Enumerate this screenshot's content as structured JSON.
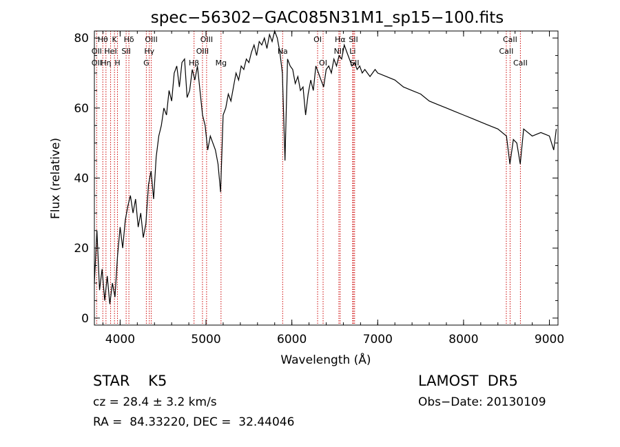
{
  "chart_data": {
    "type": "line",
    "title": "spec−56302−GAC085N31M1_sp15−100.fits",
    "xlabel": "Wavelength (Å)",
    "ylabel": "Flux (relative)",
    "xlim": [
      3700,
      9100
    ],
    "ylim": [
      -2,
      82
    ],
    "x_ticks": [
      4000,
      5000,
      6000,
      7000,
      8000,
      9000
    ],
    "y_ticks": [
      0,
      20,
      40,
      60,
      80
    ],
    "grid": false,
    "series": [
      {
        "x": [
          3700,
          3730,
          3760,
          3790,
          3820,
          3850,
          3880,
          3910,
          3940,
          3970,
          4000,
          4030,
          4060,
          4090,
          4120,
          4150,
          4180,
          4210,
          4240,
          4270,
          4300,
          4330,
          4360,
          4390,
          4420,
          4450,
          4480,
          4510,
          4540,
          4570,
          4600,
          4630,
          4660,
          4690,
          4720,
          4750,
          4780,
          4810,
          4840,
          4870,
          4900,
          4930,
          4960,
          4990,
          5020,
          5050,
          5080,
          5110,
          5140,
          5170,
          5200,
          5230,
          5260,
          5290,
          5320,
          5350,
          5380,
          5410,
          5440,
          5470,
          5500,
          5530,
          5560,
          5590,
          5620,
          5650,
          5680,
          5710,
          5740,
          5770,
          5800,
          5830,
          5860,
          5890,
          5920,
          5950,
          5980,
          6010,
          6040,
          6070,
          6100,
          6130,
          6160,
          6190,
          6220,
          6250,
          6280,
          6310,
          6340,
          6370,
          6400,
          6430,
          6460,
          6490,
          6520,
          6550,
          6580,
          6610,
          6640,
          6670,
          6700,
          6730,
          6760,
          6790,
          6820,
          6850,
          6880,
          6910,
          6940,
          6970,
          7000,
          7100,
          7200,
          7300,
          7400,
          7500,
          7600,
          7700,
          7800,
          7900,
          8000,
          8100,
          8200,
          8300,
          8400,
          8500,
          8540,
          8580,
          8620,
          8660,
          8700,
          8800,
          8900,
          9000,
          9050,
          9080
        ],
        "y": [
          10,
          25,
          8,
          14,
          5,
          12,
          4,
          10,
          6,
          18,
          26,
          20,
          28,
          32,
          35,
          30,
          34,
          26,
          30,
          23,
          27,
          38,
          42,
          34,
          46,
          52,
          55,
          60,
          58,
          65,
          62,
          70,
          72,
          66,
          73,
          74,
          63,
          65,
          71,
          68,
          72,
          65,
          58,
          55,
          48,
          52,
          50,
          48,
          44,
          36,
          58,
          60,
          64,
          62,
          66,
          70,
          68,
          72,
          71,
          74,
          73,
          76,
          78,
          75,
          79,
          78,
          80,
          77,
          81,
          79,
          82,
          80,
          76,
          70,
          45,
          74,
          72,
          71,
          67,
          69,
          65,
          66,
          58,
          64,
          68,
          65,
          72,
          70,
          68,
          66,
          71,
          72,
          70,
          74,
          72,
          75,
          74,
          78,
          76,
          74,
          72,
          73,
          71,
          72,
          70,
          71,
          70,
          69,
          70,
          71,
          70,
          69,
          68,
          66,
          65,
          64,
          62,
          61,
          60,
          59,
          58,
          57,
          56,
          55,
          54,
          52,
          44,
          51,
          50,
          44,
          54,
          52,
          53,
          52,
          48,
          54
        ]
      }
    ],
    "lines": [
      {
        "name": "Hθ",
        "x": 3798,
        "row": 0
      },
      {
        "name": "OII",
        "x": 3727,
        "row": 1
      },
      {
        "name": "OII",
        "x": 3727,
        "row": 2
      },
      {
        "name": "Hη",
        "x": 3835,
        "row": 2
      },
      {
        "name": "K",
        "x": 3934,
        "row": 0
      },
      {
        "name": "HeI",
        "x": 3889,
        "row": 1
      },
      {
        "name": "H",
        "x": 3969,
        "row": 2
      },
      {
        "name": "Hδ",
        "x": 4102,
        "row": 0
      },
      {
        "name": "SII",
        "x": 4070,
        "row": 1
      },
      {
        "name": "OIII",
        "x": 4363,
        "row": 0
      },
      {
        "name": "Hγ",
        "x": 4340,
        "row": 1
      },
      {
        "name": "G",
        "x": 4305,
        "row": 2
      },
      {
        "name": "Hβ",
        "x": 4861,
        "row": 2
      },
      {
        "name": "OIII",
        "x": 5007,
        "row": 0
      },
      {
        "name": "OIII",
        "x": 4959,
        "row": 1
      },
      {
        "name": "Mg",
        "x": 5175,
        "row": 2
      },
      {
        "name": "Na",
        "x": 5893,
        "row": 1
      },
      {
        "name": "OI",
        "x": 6300,
        "row": 0
      },
      {
        "name": "OI",
        "x": 6364,
        "row": 2
      },
      {
        "name": "Hα",
        "x": 6563,
        "row": 0
      },
      {
        "name": "SII",
        "x": 6717,
        "row": 0
      },
      {
        "name": "Li",
        "x": 6708,
        "row": 1
      },
      {
        "name": "NII",
        "x": 6548,
        "row": 1
      },
      {
        "name": "SII",
        "x": 6731,
        "row": 2
      },
      {
        "name": "CaII",
        "x": 8542,
        "row": 0
      },
      {
        "name": "CaII",
        "x": 8498,
        "row": 1
      },
      {
        "name": "CaII",
        "x": 8662,
        "row": 2
      }
    ],
    "line_color": "#cc0000"
  },
  "info": {
    "left1": "STAR    K5",
    "left2": "cz = 28.4 ± 3.2 km/s",
    "left3": "RA =  84.33220, DEC =  32.44046",
    "right1": "LAMOST  DR5",
    "right2": "Obs−Date: 20130109"
  }
}
